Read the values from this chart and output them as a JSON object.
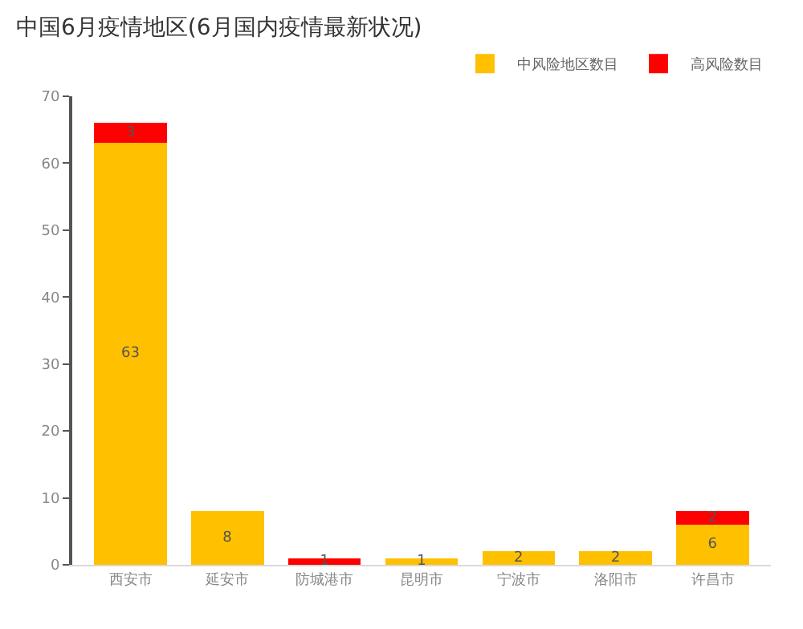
{
  "chart_data": {
    "type": "bar",
    "stacked": true,
    "title": "中国6月疫情地区(6月国内疫情最新状况)",
    "categories": [
      "西安市",
      "延安市",
      "防城港市",
      "昆明市",
      "宁波市",
      "洛阳市",
      "许昌市"
    ],
    "series": [
      {
        "name": "中风险地区数目",
        "color": "#ffc000",
        "values": [
          63,
          8,
          0,
          1,
          2,
          2,
          6
        ],
        "value_labels": [
          "63",
          "8",
          null,
          "1",
          "2",
          "2",
          "6"
        ]
      },
      {
        "name": "高风险数目",
        "color": "#ff0000",
        "values": [
          3,
          0,
          1,
          0,
          0,
          0,
          2
        ],
        "value_labels": [
          "3",
          null,
          "1",
          null,
          null,
          null,
          "2"
        ]
      }
    ],
    "ylim": [
      0,
      70
    ],
    "yticks": [
      0,
      10,
      20,
      30,
      40,
      50,
      60,
      70
    ],
    "legend": "top right"
  }
}
